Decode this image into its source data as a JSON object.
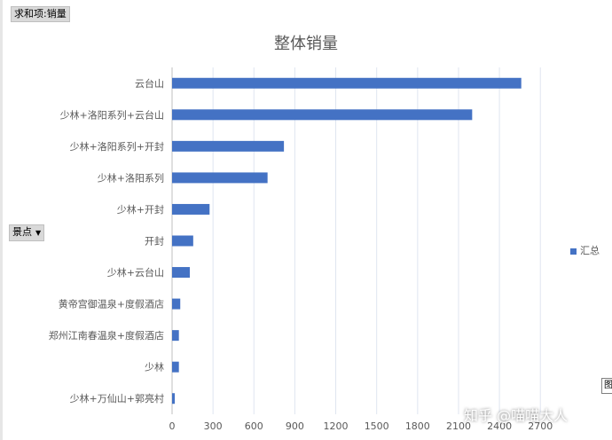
{
  "pivot": {
    "value_field": "求和项:销量",
    "axis_field": "景点",
    "axis_dropdown_icon": "dropdown-triangle"
  },
  "colors": {
    "bar": "#4472c4",
    "grid": "#dfe5f0",
    "axis": "#bfbfbf"
  },
  "chart_data": {
    "type": "bar",
    "orientation": "horizontal",
    "title": "整体销量",
    "categories": [
      "云台山",
      "少林+洛阳系列+云台山",
      "少林+洛阳系列+开封",
      "少林+洛阳系列",
      "少林+开封",
      "开封",
      "少林+云台山",
      "黄帝宫御温泉+度假酒店",
      "郑州江南春温泉+度假酒店",
      "少林",
      "少林+万仙山+郭亮村"
    ],
    "series": [
      {
        "name": "汇总",
        "values": [
          2560,
          2200,
          820,
          700,
          275,
          155,
          130,
          60,
          50,
          50,
          20
        ]
      }
    ],
    "xticks": [
      0,
      300,
      600,
      900,
      1200,
      1500,
      1800,
      2100,
      2400,
      2700
    ],
    "xlim": [
      0,
      2900
    ],
    "grid": true,
    "legend": "right"
  },
  "tooltip_stub": "图",
  "watermark": "知乎 @喵喵大人"
}
